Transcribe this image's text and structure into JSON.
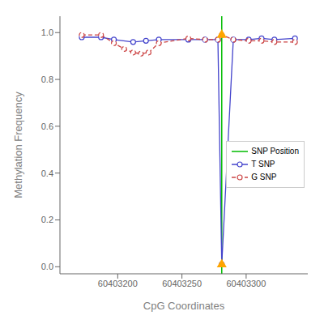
{
  "chart_data": {
    "type": "line",
    "xlabel": "CpG Coordinates",
    "ylabel": "Methylation Frequency",
    "xlim": [
      60403155,
      60403348
    ],
    "ylim": [
      -0.03,
      1.07
    ],
    "xticks": [
      60403200,
      60403250,
      60403300
    ],
    "yticks": [
      {
        "value": 0.0,
        "label": "0.0"
      },
      0.2,
      0.4,
      0.6,
      0.8,
      {
        "value": 1.0,
        "label": "1.0"
      }
    ],
    "grid": false,
    "legend": "right",
    "reference_line": {
      "name": "SNP Position",
      "x": 60403281,
      "color": "#00bb00"
    },
    "series": [
      {
        "name": "T SNP",
        "color": "#4444cc",
        "marker": "circle",
        "line_style": "solid",
        "x": [
          60403172,
          60403187,
          60403197,
          60403212,
          60403222,
          60403232,
          60403255,
          60403268,
          60403278,
          60403281,
          60403290,
          60403302,
          60403312,
          60403322,
          60403338
        ],
        "values": [
          0.98,
          0.98,
          0.97,
          0.96,
          0.965,
          0.97,
          0.97,
          0.97,
          0.97,
          0.01,
          0.97,
          0.97,
          0.975,
          0.97,
          0.975
        ]
      },
      {
        "name": "G SNP",
        "color": "#cc4444",
        "marker": "circle",
        "line_style": "dashed",
        "x": [
          60403172,
          60403187,
          60403197,
          60403205,
          60403212,
          60403218,
          60403224,
          60403232,
          60403255,
          60403268,
          60403278,
          60403281,
          60403290,
          60403302,
          60403312,
          60403322,
          60403338
        ],
        "values": [
          0.99,
          0.99,
          0.955,
          0.93,
          0.915,
          0.91,
          0.915,
          0.955,
          0.975,
          0.97,
          0.97,
          0.99,
          0.97,
          0.965,
          0.965,
          0.96,
          0.96
        ]
      }
    ],
    "markers": {
      "x": [
        60403281,
        60403281
      ],
      "values": [
        0.99,
        0.01
      ],
      "color": "#FFA500",
      "marker": "triangle"
    }
  }
}
